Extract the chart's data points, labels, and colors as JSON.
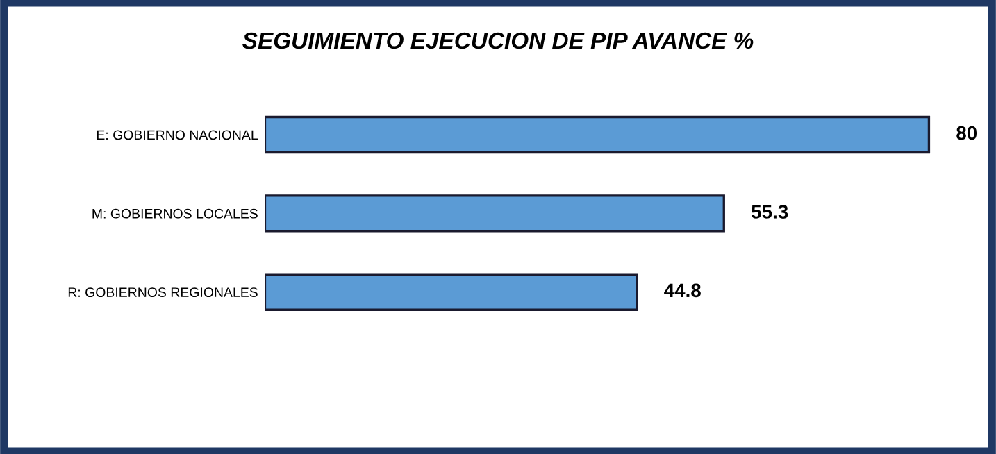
{
  "chart_data": {
    "type": "bar",
    "orientation": "horizontal",
    "title": "SEGUIMIENTO EJECUCION DE PIP AVANCE %",
    "categories": [
      "E: GOBIERNO NACIONAL",
      "M: GOBIERNOS LOCALES",
      "R: GOBIERNOS REGIONALES"
    ],
    "values": [
      80,
      55.3,
      44.8
    ],
    "color": "#5b9bd5",
    "data_labels": true,
    "grid": false,
    "legend": false
  }
}
